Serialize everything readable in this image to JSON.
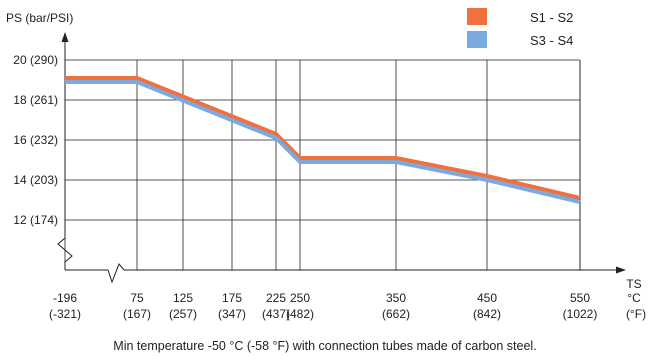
{
  "chart_data": {
    "type": "line",
    "ylabel": "PS (bar/PSI)",
    "xlabel": "TS",
    "xlabel_unit_c": "°C",
    "xlabel_unit_f": "(°F)",
    "y_ticks": [
      "20 (290)",
      "18 (261)",
      "16 (232)",
      "14 (203)",
      "12 (174)"
    ],
    "y_tick_values": [
      20,
      18,
      16,
      14,
      12
    ],
    "x_ticks": [
      {
        "c": "-196",
        "f": "(-321)"
      },
      {
        "c": "75",
        "f": "(167)"
      },
      {
        "c": "125",
        "f": "(257)"
      },
      {
        "c": "175",
        "f": "(347)"
      },
      {
        "c": "225",
        "f": "(437)"
      },
      {
        "c": "250",
        "f": "(482)"
      },
      {
        "c": "350",
        "f": "(662)"
      },
      {
        "c": "450",
        "f": "(842)"
      },
      {
        "c": "550",
        "f": "(1022)"
      }
    ],
    "series": [
      {
        "name": "S1 - S2",
        "color": "#f0713d",
        "x": [
          -196,
          75,
          225,
          250,
          350,
          450,
          550
        ],
        "y": [
          19.1,
          19.1,
          16.3,
          15.1,
          15.1,
          14.2,
          13.1
        ]
      },
      {
        "name": "S3 - S4",
        "color": "#7aaadf",
        "x": [
          -196,
          75,
          225,
          250,
          350,
          450,
          550
        ],
        "y": [
          18.9,
          18.9,
          16.1,
          14.9,
          14.9,
          14.0,
          12.9
        ]
      }
    ],
    "grid": true,
    "legend_position": "top-right"
  },
  "footnote": "Min temperature -50 °C (-58 °F) with connection tubes made of carbon steel."
}
